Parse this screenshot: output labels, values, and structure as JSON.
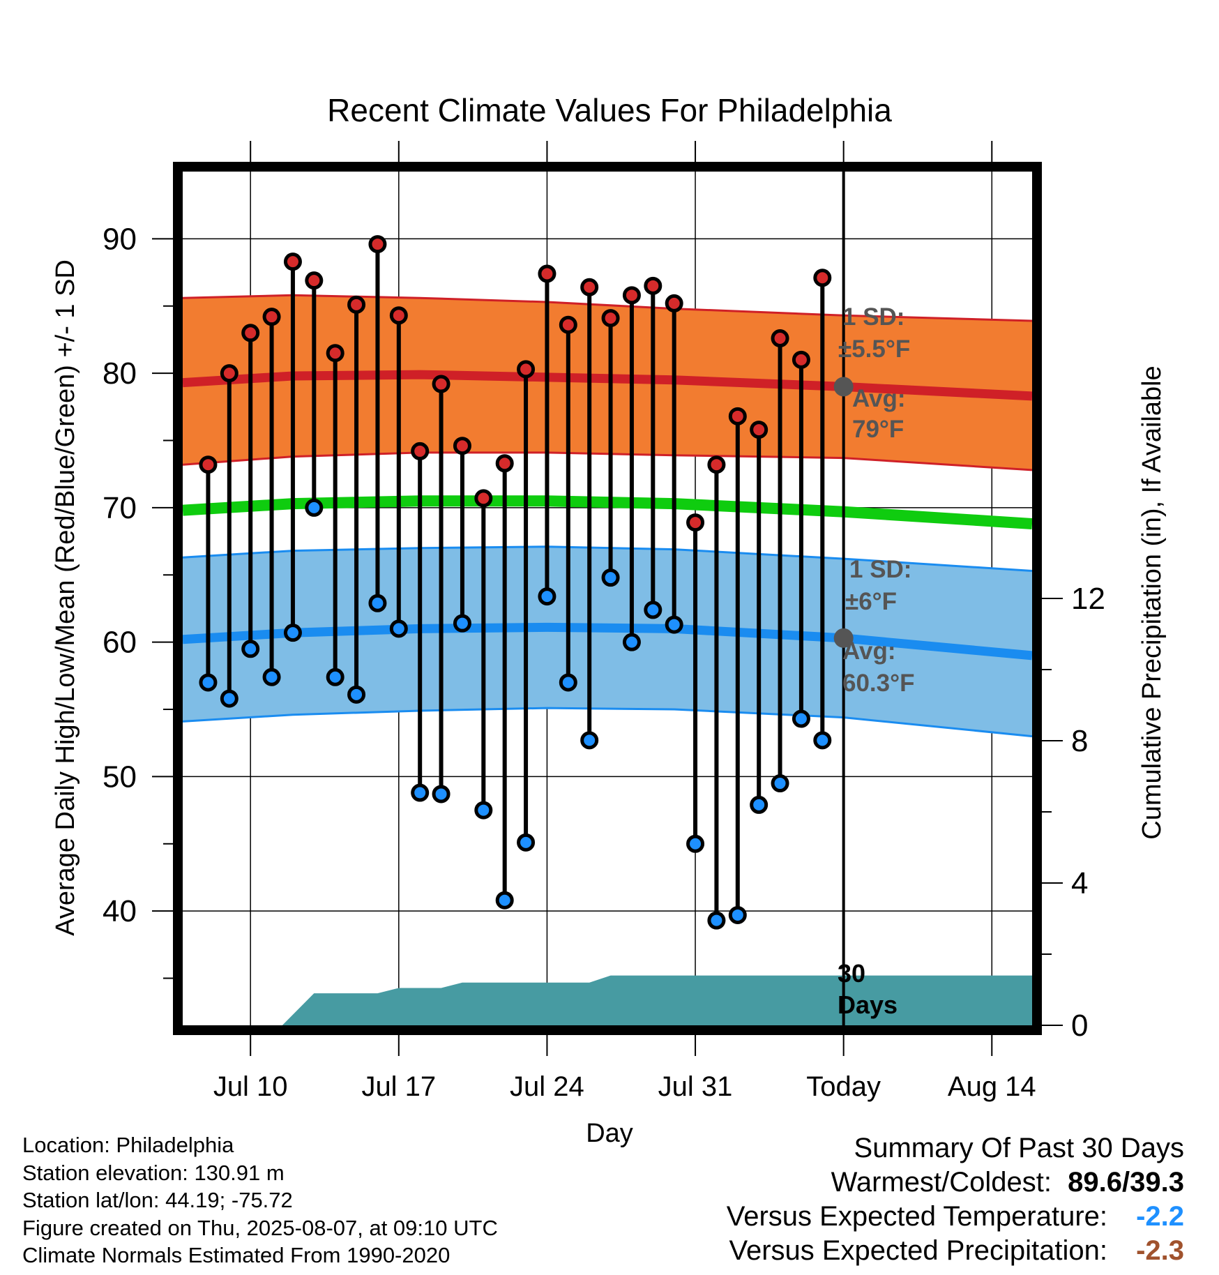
{
  "chart_data": {
    "type": "range-bar",
    "title": "Recent Climate Values For Philadelphia",
    "xlabel": "Day",
    "ylabel": "Average Daily High/Low/Mean (Red/Blue/Green) +/- 1 SD",
    "y2label": "Cumulative Precipitation (in), If Available",
    "ylim": [
      31.5,
      95
    ],
    "y2lim": [
      0,
      24
    ],
    "y_ticks": [
      40,
      50,
      60,
      70,
      80,
      90
    ],
    "y2_ticks": [
      0,
      4,
      8,
      12
    ],
    "x_ticks": [
      {
        "label": "Jul 10",
        "day": 10
      },
      {
        "label": "Jul 17",
        "day": 17
      },
      {
        "label": "Jul 24",
        "day": 24
      },
      {
        "label": "Jul 31",
        "day": 31
      },
      {
        "label": "Today",
        "day": 38
      },
      {
        "label": "Aug 14",
        "day": 45
      }
    ],
    "xlim": [
      6.8,
      46.9
    ],
    "today_day": 38,
    "days": [
      8,
      9,
      10,
      11,
      12,
      13,
      14,
      15,
      16,
      17,
      18,
      19,
      20,
      21,
      22,
      23,
      24,
      25,
      26,
      27,
      28,
      29,
      30,
      31,
      32,
      33,
      34,
      35,
      36,
      37
    ],
    "highs": [
      73.2,
      80.0,
      83.0,
      84.2,
      88.3,
      86.9,
      81.5,
      85.1,
      89.6,
      84.3,
      74.2,
      79.2,
      74.6,
      70.7,
      73.3,
      80.3,
      87.4,
      83.6,
      86.4,
      84.1,
      85.8,
      86.5,
      85.2,
      68.9,
      73.2,
      76.8,
      75.8,
      82.6,
      81.0,
      87.1
    ],
    "lows": [
      57.0,
      55.8,
      59.5,
      57.4,
      60.7,
      70.0,
      57.4,
      56.1,
      62.9,
      61.0,
      48.8,
      48.7,
      61.4,
      47.5,
      40.8,
      45.1,
      63.4,
      57.0,
      52.7,
      64.8,
      60.0,
      62.4,
      61.3,
      45.0,
      39.3,
      39.7,
      47.9,
      49.5,
      54.3,
      52.7
    ],
    "normal_high": {
      "x": [
        6.8,
        12,
        18,
        24,
        30,
        38,
        46.9
      ],
      "mean": [
        79.3,
        79.8,
        79.9,
        79.7,
        79.5,
        79.0,
        78.3
      ],
      "upper": [
        85.6,
        85.8,
        85.6,
        85.3,
        84.8,
        84.3,
        83.9
      ],
      "lower": [
        73.2,
        73.8,
        74.1,
        74.1,
        73.9,
        73.7,
        72.8
      ]
    },
    "normal_low": {
      "x": [
        6.8,
        12,
        18,
        24,
        30,
        38,
        46.9
      ],
      "mean": [
        60.2,
        60.7,
        61.0,
        61.1,
        61.0,
        60.3,
        59.0
      ],
      "upper": [
        66.3,
        66.8,
        67.0,
        67.1,
        66.9,
        66.2,
        65.3
      ],
      "lower": [
        54.1,
        54.6,
        54.9,
        55.1,
        55.0,
        54.4,
        53.0
      ]
    },
    "normal_mean": {
      "x": [
        6.8,
        12,
        18,
        24,
        30,
        38,
        46.9
      ],
      "values": [
        69.8,
        70.3,
        70.5,
        70.5,
        70.3,
        69.7,
        68.8
      ]
    },
    "precip": {
      "x": [
        6.8,
        11.5,
        13,
        16,
        17,
        19,
        20,
        26,
        27,
        46.9
      ],
      "values": [
        0,
        0,
        0.9,
        0.9,
        1.05,
        1.05,
        1.2,
        1.2,
        1.4,
        1.4
      ]
    },
    "annotations": {
      "high_sd_line1": "1 SD:",
      "high_sd_line2": "±5.5°F",
      "high_avg_line1": "Avg:",
      "high_avg_line2": "79°F",
      "low_sd_line1": "1 SD:",
      "low_sd_line2": "±6°F",
      "low_avg_line1": "Avg:",
      "low_avg_line2": "60.3°F",
      "days_line1": "30",
      "days_line2": "Days"
    },
    "high_avg_value": 79.0,
    "low_avg_value": 60.3,
    "colors": {
      "high_band": "#f27c30",
      "high_mean": "#cf2027",
      "low_band": "#7fbde6",
      "low_mean": "#1a8cf0",
      "normal_mean": "#0fcc0f",
      "precip": "#479ba2",
      "high_marker": "#d62b2b",
      "low_marker": "#1e90ff",
      "annotation": "#555555"
    }
  },
  "footer": {
    "location": "Location: Philadelphia",
    "elevation": "Station elevation: 130.91 m",
    "latlon": "Station lat/lon: 44.19; -75.72",
    "created": "Figure created on Thu, 2025-08-07, at 09:10 UTC",
    "normals": "Climate Normals Estimated From 1990-2020"
  },
  "summary": {
    "title": "Summary Of Past 30 Days",
    "warm_cold_label": "Warmest/Coldest:",
    "warm_cold_value": "89.6/39.3",
    "temp_label": "Versus Expected Temperature:",
    "temp_value": "-2.2",
    "temp_color": "#1e90ff",
    "precip_label": "Versus Expected Precipitation:",
    "precip_value": "-2.3",
    "precip_color": "#a0522d"
  }
}
